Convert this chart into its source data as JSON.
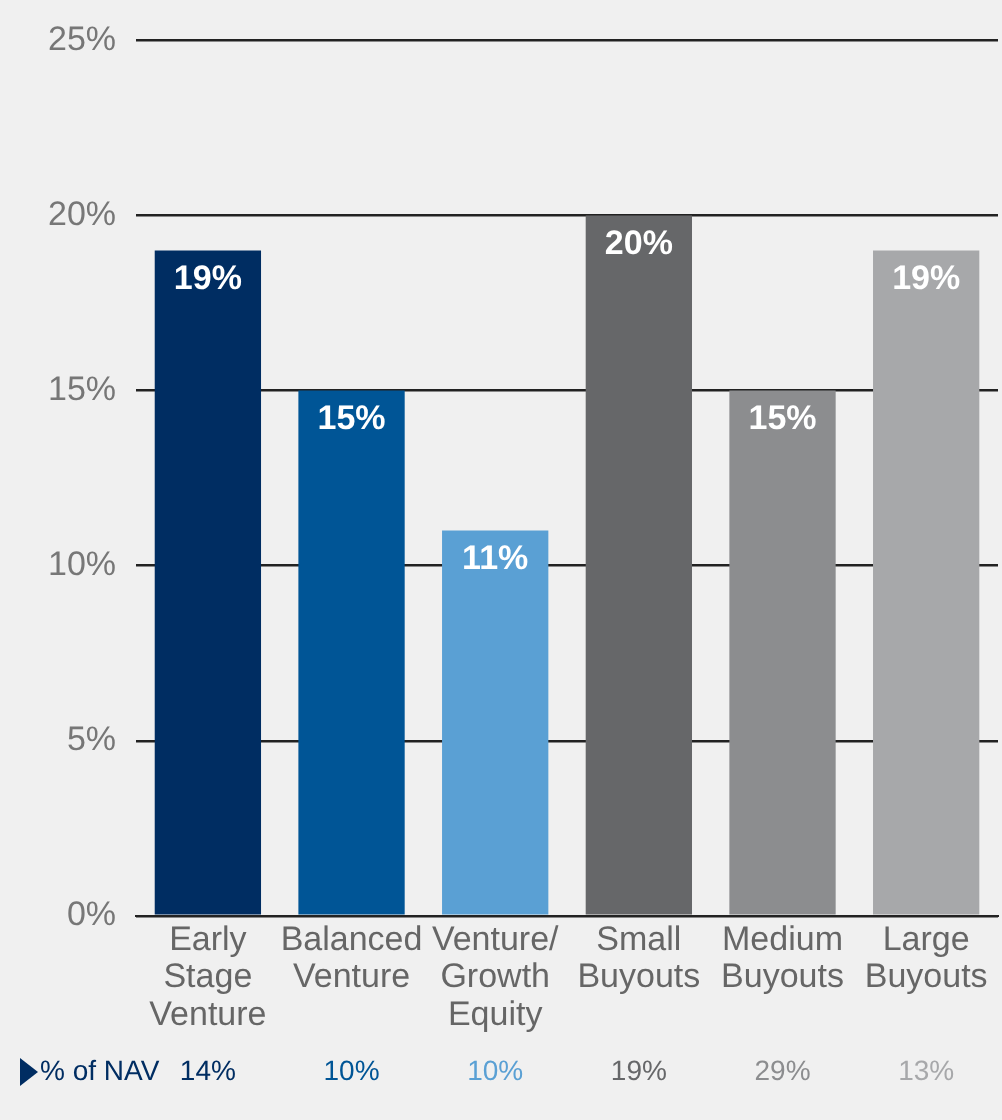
{
  "chart_data": {
    "type": "bar",
    "categories": [
      "Early Stage Venture",
      "Balanced Venture",
      "Venture/ Growth Equity",
      "Small Buyouts",
      "Medium Buyouts",
      "Large Buyouts"
    ],
    "values": [
      19,
      15,
      11,
      20,
      15,
      19
    ],
    "colors": [
      "#002d62",
      "#005596",
      "#5aa0d4",
      "#666769",
      "#8c8d8f",
      "#a7a8aa"
    ],
    "value_labels": [
      "19%",
      "15%",
      "11%",
      "20%",
      "15%",
      "19%"
    ],
    "ylim": [
      0,
      25
    ],
    "yticks": [
      {
        "value": 0,
        "label": "0%"
      },
      {
        "value": 5,
        "label": "5%"
      },
      {
        "value": 10,
        "label": "10%"
      },
      {
        "value": 15,
        "label": "15%"
      },
      {
        "value": 20,
        "label": "20%"
      },
      {
        "value": 25,
        "label": "25%"
      }
    ],
    "grid": "y",
    "legend": false,
    "annotations": [
      "% of NAV",
      "14%",
      "10%",
      "10%",
      "19%",
      "29%",
      "13%"
    ]
  }
}
